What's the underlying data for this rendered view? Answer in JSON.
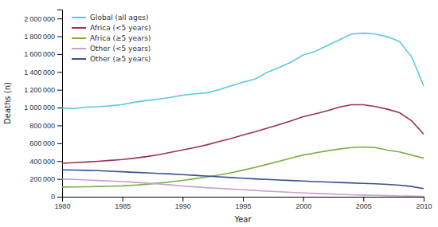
{
  "chart_data": {
    "type": "line",
    "xlabel": "Year",
    "ylabel": "Deaths (n)",
    "x": [
      1980,
      1981,
      1982,
      1983,
      1984,
      1985,
      1986,
      1987,
      1988,
      1989,
      1990,
      1991,
      1992,
      1993,
      1994,
      1995,
      1996,
      1997,
      1998,
      1999,
      2000,
      2001,
      2002,
      2003,
      2004,
      2005,
      2006,
      2007,
      2008,
      2009,
      2010
    ],
    "series": [
      {
        "name": "Global (all ages)",
        "color": "#5bc8e0",
        "values": [
          995000,
          990000,
          1005000,
          1010000,
          1020000,
          1035000,
          1060000,
          1080000,
          1095000,
          1115000,
          1140000,
          1155000,
          1165000,
          1200000,
          1245000,
          1285000,
          1320000,
          1395000,
          1450000,
          1510000,
          1590000,
          1630000,
          1695000,
          1760000,
          1825000,
          1835000,
          1825000,
          1795000,
          1740000,
          1570000,
          1245000
        ]
      },
      {
        "name": "Africa (<5 years)",
        "color": "#993355",
        "values": [
          375000,
          382000,
          390000,
          398000,
          408000,
          418000,
          432000,
          450000,
          472000,
          498000,
          525000,
          552000,
          582000,
          618000,
          652000,
          692000,
          728000,
          768000,
          808000,
          852000,
          898000,
          930000,
          965000,
          1005000,
          1032000,
          1032000,
          1012000,
          982000,
          942000,
          852000,
          702000
        ]
      },
      {
        "name": "Africa (≥5 years)",
        "color": "#7ab040",
        "values": [
          108000,
          110000,
          112000,
          115000,
          118000,
          122000,
          130000,
          140000,
          153000,
          167000,
          183000,
          202000,
          222000,
          243000,
          268000,
          298000,
          328000,
          363000,
          398000,
          433000,
          468000,
          492000,
          515000,
          535000,
          552000,
          558000,
          552000,
          522000,
          502000,
          468000,
          432000
        ]
      },
      {
        "name": "Other (<5 years)",
        "color": "#c8a0c8",
        "values": [
          200000,
          195000,
          188000,
          182000,
          176000,
          170000,
          162000,
          153000,
          143000,
          133000,
          121000,
          111000,
          102000,
          94000,
          86000,
          78000,
          70000,
          63000,
          56000,
          49000,
          43000,
          37000,
          32000,
          27000,
          23000,
          19000,
          15000,
          12000,
          9000,
          6000,
          4000
        ]
      },
      {
        "name": "Other (≥5 years)",
        "color": "#3a5090",
        "values": [
          302000,
          300000,
          296000,
          292000,
          286000,
          280000,
          274000,
          268000,
          262000,
          256000,
          248000,
          240000,
          232000,
          224000,
          216000,
          208000,
          200000,
          194000,
          188000,
          182000,
          176000,
          170000,
          165000,
          160000,
          155000,
          150000,
          145000,
          138000,
          130000,
          115000,
          92000
        ]
      }
    ],
    "xlim": [
      1980,
      2010
    ],
    "xticks": [
      1980,
      1985,
      1990,
      1995,
      2000,
      2005,
      2010
    ],
    "ylim": [
      0,
      2100000
    ],
    "yticks": [
      0,
      {
        "value": 200000,
        "label": "200 000"
      },
      {
        "value": 400000,
        "label": "400 000"
      },
      {
        "value": 600000,
        "label": "600 000"
      },
      {
        "value": 800000,
        "label": "800 000"
      },
      {
        "value": 1000000,
        "label": "1 000 000"
      },
      {
        "value": 1200000,
        "label": "1 200 000"
      },
      {
        "value": 1400000,
        "label": "1 400 000"
      },
      {
        "value": 1600000,
        "label": "1 600 000"
      },
      {
        "value": 1800000,
        "label": "1 800 000"
      },
      {
        "value": 2000000,
        "label": "2 000 000"
      }
    ],
    "grid": false,
    "legend": "upper left"
  }
}
